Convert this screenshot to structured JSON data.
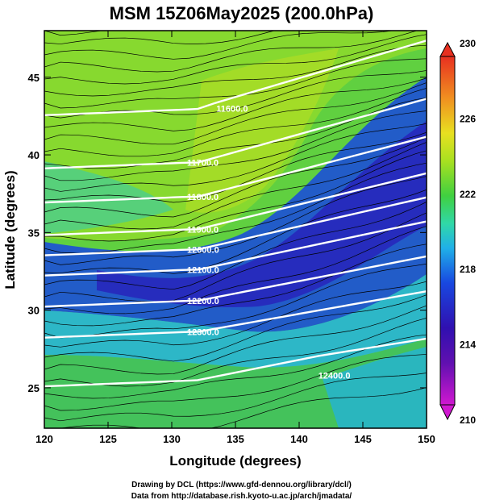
{
  "title": "MSM 15Z06May2025 (200.0hPa)",
  "x_axis": {
    "label": "Longitude (degrees)",
    "range": [
      120,
      150
    ],
    "ticks": [
      120,
      125,
      130,
      135,
      140,
      145,
      150
    ],
    "tick_labels": [
      "120",
      "125",
      "130",
      "135",
      "140",
      "145",
      "150"
    ]
  },
  "y_axis": {
    "label": "Latitude  (degrees)",
    "range": [
      22.4,
      48
    ],
    "ticks": [
      25,
      30,
      35,
      40,
      45
    ],
    "tick_labels": [
      "25",
      "30",
      "35",
      "40",
      "45"
    ]
  },
  "colorbar": {
    "min": 210,
    "max": 230,
    "ticks": [
      210,
      214,
      218,
      222,
      226,
      230
    ],
    "tick_labels": [
      "210",
      "214",
      "218",
      "222",
      "226",
      "230"
    ],
    "colors": [
      "#d018d0",
      "#3010b0",
      "#1848e0",
      "#20b0e8",
      "#30d8a8",
      "#40d040",
      "#a8e020",
      "#e8e020",
      "#f09020",
      "#e83020"
    ]
  },
  "contours": [
    {
      "label": "11600.0",
      "lon": 133.5,
      "lat": 43.0
    },
    {
      "label": "11700.0",
      "lon": 131.2,
      "lat": 39.5
    },
    {
      "label": "11800.0",
      "lon": 131.2,
      "lat": 37.3
    },
    {
      "label": "11900.0",
      "lon": 131.2,
      "lat": 35.2
    },
    {
      "label": "12000.0",
      "lon": 131.2,
      "lat": 33.9
    },
    {
      "label": "12100.0",
      "lon": 131.2,
      "lat": 32.6
    },
    {
      "label": "12200.0",
      "lon": 131.2,
      "lat": 30.6
    },
    {
      "label": "12300.0",
      "lon": 131.2,
      "lat": 28.6
    },
    {
      "label": "12400.0",
      "lon": 141.5,
      "lat": 25.8
    }
  ],
  "credit_line1": "Drawing by DCL (https://www.gfd-dennou.org/library/dcl/)",
  "credit_line2": "Data from http://database.rish.kyoto-u.ac.jp/arch/jmadata/"
}
